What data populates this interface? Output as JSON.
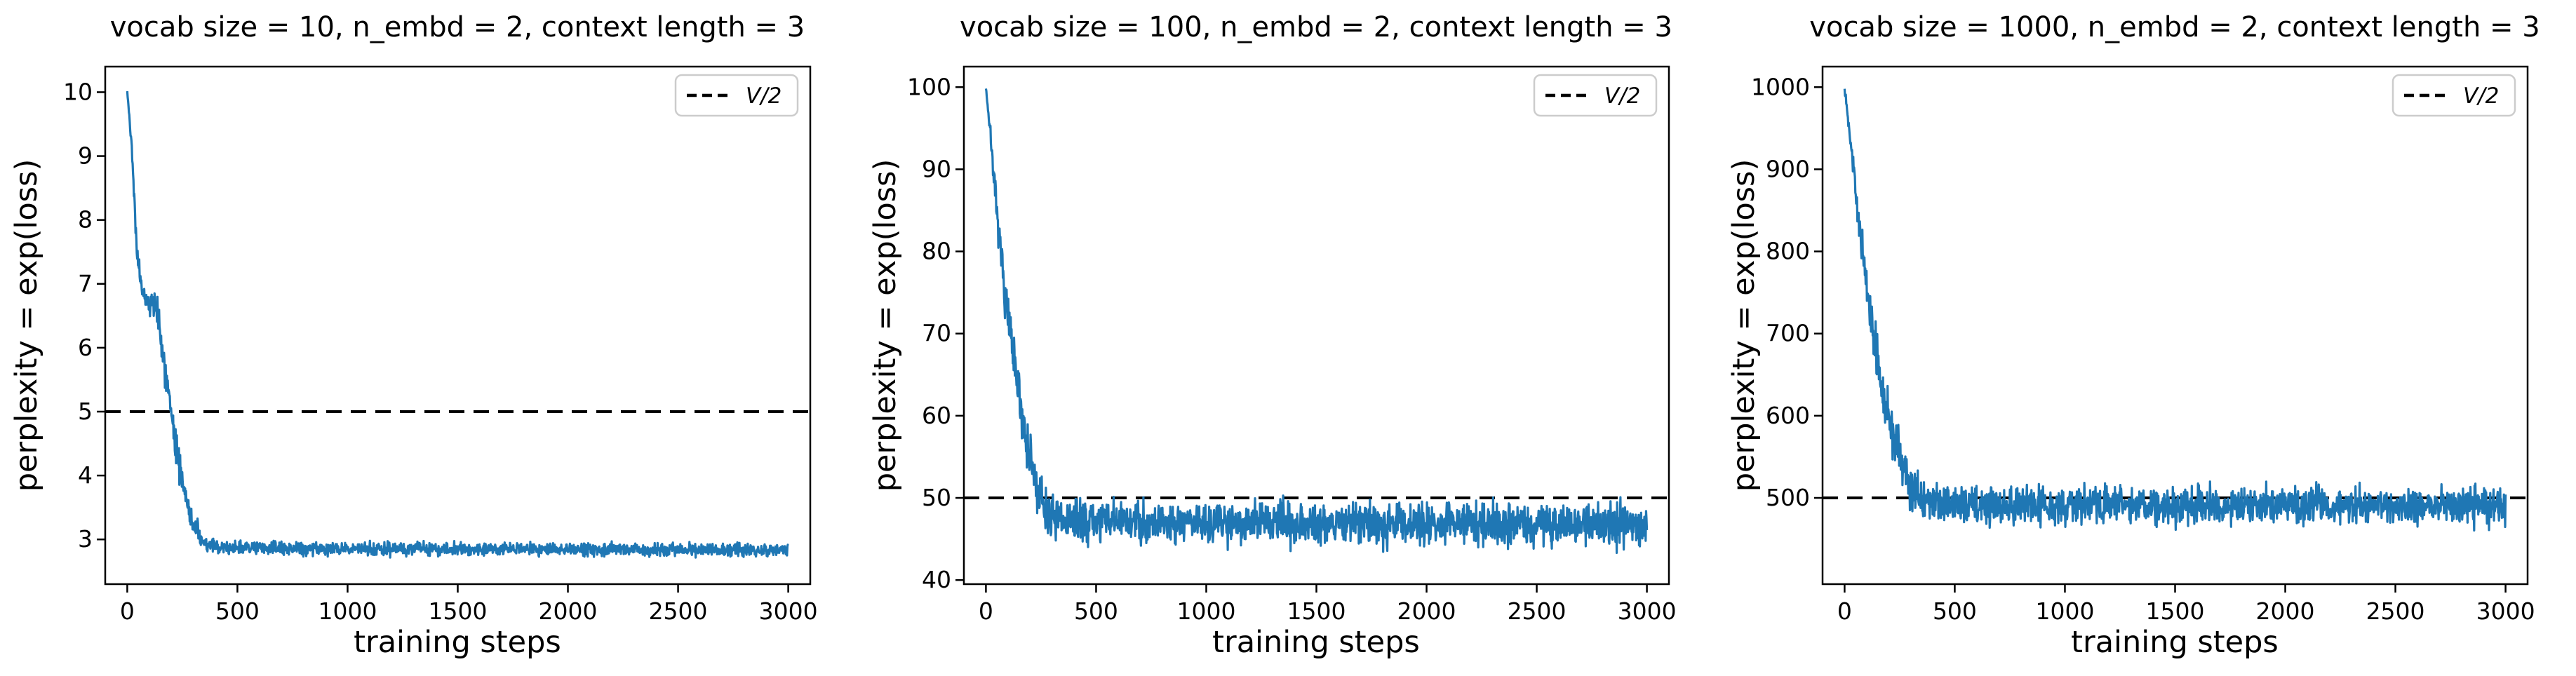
{
  "figure": {
    "background_color": "#ffffff",
    "curve_color": "#1f77b4",
    "axis_color": "#000000",
    "dashed_line_color": "#000000"
  },
  "chart_data": [
    {
      "type": "line",
      "title": "vocab size = 10, n_embd = 2, context length = 3",
      "xlabel": "training steps",
      "ylabel": "perplexity = exp(loss)",
      "legend": {
        "label": "V/2",
        "position": "upper right",
        "linestyle": "dashed"
      },
      "grid": false,
      "x_ticks": [
        0,
        500,
        1000,
        1500,
        2000,
        2500,
        3000
      ],
      "y_ticks": [
        3,
        4,
        5,
        6,
        7,
        8,
        9,
        10
      ],
      "xlim": [
        -100,
        3100
      ],
      "ylim": [
        2.3,
        10.4
      ],
      "hline_value": 5,
      "series": [
        {
          "color": "#1f77b4",
          "start_value": 10,
          "settles_near": 2.85,
          "envelope": {
            "steps": [
              0,
              20,
              45,
              70,
              140,
              165,
              200,
              250,
              300,
              340,
              420,
              700,
              3000
            ],
            "mean": [
              10,
              9.2,
              7.4,
              6.85,
              6.55,
              5.8,
              4.9,
              3.9,
              3.2,
              2.95,
              2.87,
              2.86,
              2.83
            ],
            "noise_sigma": [
              0.02,
              0.05,
              0.08,
              0.1,
              0.11,
              0.12,
              0.13,
              0.12,
              0.1,
              0.07,
              0.05,
              0.05,
              0.05
            ]
          }
        }
      ]
    },
    {
      "type": "line",
      "title": "vocab size = 100, n_embd = 2, context length = 3",
      "xlabel": "training steps",
      "ylabel": "perplexity = exp(loss)",
      "legend": {
        "label": "V/2",
        "position": "upper right",
        "linestyle": "dashed"
      },
      "grid": false,
      "x_ticks": [
        0,
        500,
        1000,
        1500,
        2000,
        2500,
        3000
      ],
      "y_ticks": [
        40,
        50,
        60,
        70,
        80,
        90,
        100
      ],
      "xlim": [
        -100,
        3100
      ],
      "ylim": [
        39.5,
        102.5
      ],
      "hline_value": 50,
      "series": [
        {
          "color": "#1f77b4",
          "start_value": 100,
          "settles_near": 47,
          "envelope": {
            "steps": [
              0,
              25,
              50,
              90,
              140,
              190,
              230,
              280,
              330,
              3000
            ],
            "mean": [
              100,
              93,
              84,
              74,
              64,
              56,
              51,
              48,
              47.2,
              46.8
            ],
            "noise_sigma": [
              0.2,
              0.6,
              1.0,
              1.3,
              1.5,
              1.7,
              1.7,
              1.4,
              1.25,
              1.25
            ]
          }
        }
      ]
    },
    {
      "type": "line",
      "title": "vocab size = 1000, n_embd = 2, context length = 3",
      "xlabel": "training steps",
      "ylabel": "perplexity = exp(loss)",
      "legend": {
        "label": "V/2",
        "position": "upper right",
        "linestyle": "dashed"
      },
      "grid": false,
      "x_ticks": [
        0,
        500,
        1000,
        1500,
        2000,
        2500,
        3000
      ],
      "y_ticks": [
        500,
        600,
        700,
        800,
        900,
        1000
      ],
      "xlim": [
        -100,
        3100
      ],
      "ylim": [
        395,
        1025
      ],
      "hline_value": 500,
      "series": [
        {
          "color": "#1f77b4",
          "start_value": 1000,
          "settles_near": 492,
          "envelope": {
            "steps": [
              0,
              30,
              60,
              110,
              170,
              240,
              300,
              360,
              450,
              3000
            ],
            "mean": [
              1000,
              930,
              845,
              735,
              630,
              560,
              515,
              495,
              492,
              490
            ],
            "noise_sigma": [
              2,
              5,
              8,
              12,
              14,
              14,
              13,
              12,
              11,
              11
            ]
          }
        }
      ]
    }
  ]
}
